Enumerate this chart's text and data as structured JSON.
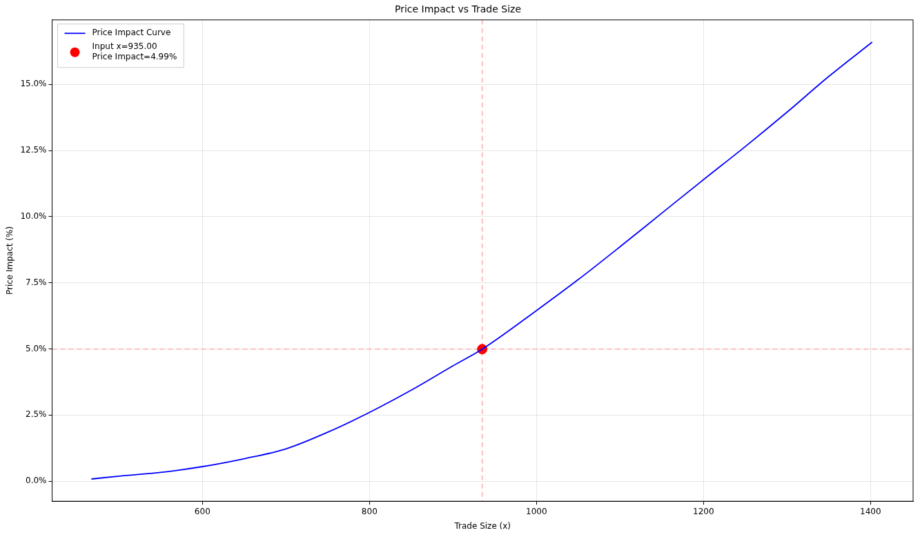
{
  "chart_data": {
    "type": "line",
    "title": "Price Impact vs Trade Size",
    "xlabel": "Trade Size (x)",
    "ylabel": "Price Impact (%)",
    "series": [
      {
        "name": "Price Impact Curve",
        "color": "#0000ff",
        "marker": "none",
        "x": [
          467,
          500,
          550,
          600,
          650,
          700,
          750,
          800,
          850,
          900,
          935,
          1000,
          1050,
          1100,
          1150,
          1200,
          1250,
          1300,
          1350,
          1402
        ],
        "values": [
          0.08,
          0.19,
          0.33,
          0.55,
          0.85,
          1.22,
          1.85,
          2.6,
          3.44,
          4.36,
          4.99,
          6.45,
          7.62,
          8.86,
          10.13,
          11.4,
          12.65,
          13.95,
          15.3,
          16.6
        ]
      },
      {
        "name": "Input x=935.00\nPrice Impact=4.99%",
        "type": "scatter",
        "color": "#ff0000",
        "marker": "circle",
        "x": [
          935
        ],
        "values": [
          4.99
        ]
      }
    ],
    "xlim": [
      420,
      1451
    ],
    "xticks": [
      600,
      800,
      1000,
      1200,
      1400
    ],
    "ylim": [
      -0.76,
      17.44
    ],
    "yticks": [
      {
        "value": 0,
        "label": "0.0%"
      },
      {
        "value": 2.5,
        "label": "2.5%"
      },
      {
        "value": 5,
        "label": "5.0%"
      },
      {
        "value": 7.5,
        "label": "7.5%"
      },
      {
        "value": 10,
        "label": "10.0%"
      },
      {
        "value": 12.5,
        "label": "12.5%"
      },
      {
        "value": 15,
        "label": "15.0%"
      }
    ],
    "ref_lines": [
      {
        "axis": "x",
        "value": 935,
        "color": "#ffaaaa",
        "line_style": "dashed"
      },
      {
        "axis": "y",
        "value": 4.99,
        "color": "#ffaaaa",
        "line_style": "dashed"
      }
    ],
    "grid": true,
    "legend": "top left"
  }
}
